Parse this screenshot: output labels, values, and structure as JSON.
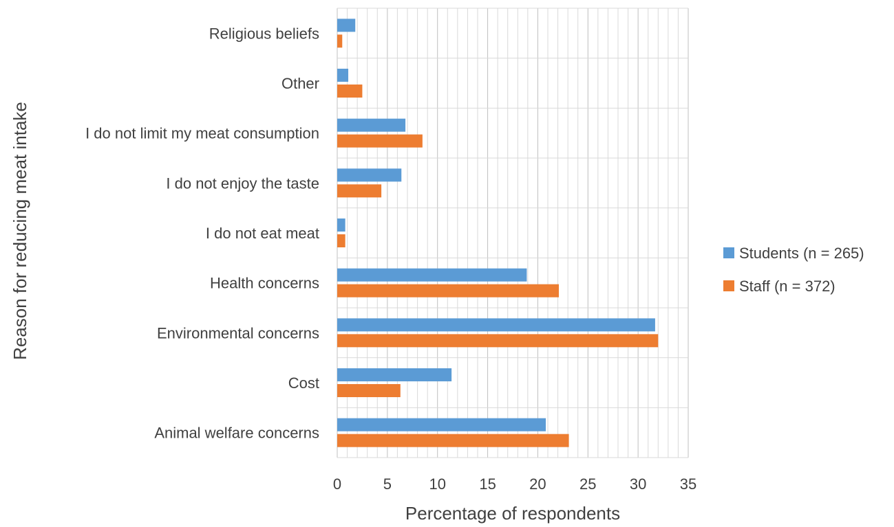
{
  "chart_data": {
    "type": "bar",
    "orientation": "horizontal",
    "title": "",
    "xlabel": "Percentage of respondents",
    "ylabel": "Reason for reducing meat intake",
    "xlim": [
      0,
      35
    ],
    "x_ticks": [
      0,
      5,
      10,
      15,
      20,
      25,
      30,
      35
    ],
    "grid": true,
    "legend_position": "right",
    "categories": [
      "Religious beliefs",
      "Other",
      "I do not limit my meat consumption",
      "I do not enjoy the taste",
      "I do not eat meat",
      "Health concerns",
      "Environmental concerns",
      "Cost",
      "Animal welfare concerns"
    ],
    "series": [
      {
        "name": "Students (n = 265)",
        "color": "#5B9BD5",
        "values": [
          1.8,
          1.1,
          6.8,
          6.4,
          0.8,
          18.9,
          31.7,
          11.4,
          20.8
        ]
      },
      {
        "name": "Staff (n = 372)",
        "color": "#ED7D31",
        "values": [
          0.5,
          2.5,
          8.5,
          4.4,
          0.8,
          22.1,
          32.0,
          6.3,
          23.1
        ]
      }
    ]
  }
}
